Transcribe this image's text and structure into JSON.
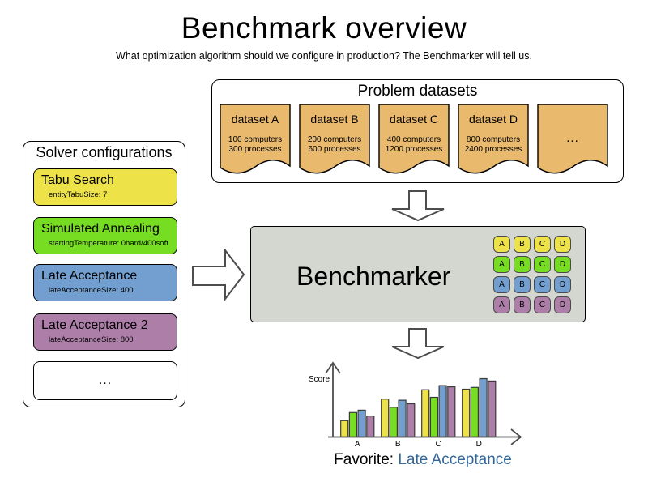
{
  "title": "Benchmark overview",
  "subtitle": "What optimization algorithm should we configure in production? The Benchmarker will tell us.",
  "colors": {
    "yellow": "#ede349",
    "green": "#77dd22",
    "blue": "#729fcf",
    "purple": "#ad7fa8",
    "tan": "#e9b96e",
    "benchmarker_bg": "#d3d7cf",
    "favorite_blue": "#336699"
  },
  "solver_configurations": {
    "title": "Solver configurations",
    "items": [
      {
        "name": "Tabu Search",
        "param": "entityTabuSize: 7",
        "color": "#ede349"
      },
      {
        "name": "Simulated Annealing",
        "param": "startingTemperature: 0hard/400soft",
        "color": "#77dd22"
      },
      {
        "name": "Late Acceptance",
        "param": "lateAcceptanceSize: 400",
        "color": "#729fcf"
      },
      {
        "name": "Late Acceptance 2",
        "param": "lateAcceptanceSize: 800",
        "color": "#ad7fa8"
      },
      {
        "name": "...",
        "param": "",
        "color": "#ffffff"
      }
    ]
  },
  "problem_datasets": {
    "title": "Problem datasets",
    "cards": [
      {
        "name": "dataset A",
        "line1": "100 computers",
        "line2": "300 processes"
      },
      {
        "name": "dataset B",
        "line1": "200 computers",
        "line2": "600 processes"
      },
      {
        "name": "dataset C",
        "line1": "400 computers",
        "line2": "1200 processes"
      },
      {
        "name": "dataset D",
        "line1": "800 computers",
        "line2": "2400 processes"
      },
      {
        "name": "...",
        "line1": "",
        "line2": ""
      }
    ]
  },
  "benchmarker": {
    "label": "Benchmarker",
    "chip_columns": [
      "A",
      "B",
      "C",
      "D"
    ],
    "chip_row_colors": [
      "#ede349",
      "#77dd22",
      "#729fcf",
      "#ad7fa8"
    ]
  },
  "chart_data": {
    "type": "bar",
    "title": "",
    "xlabel": "",
    "ylabel": "Score",
    "categories": [
      "A",
      "B",
      "C",
      "D"
    ],
    "series": [
      {
        "name": "Tabu Search",
        "color": "#ede349",
        "values": [
          28,
          65,
          81,
          82
        ]
      },
      {
        "name": "Simulated Annealing",
        "color": "#77dd22",
        "values": [
          42,
          51,
          68,
          85
        ]
      },
      {
        "name": "Late Acceptance",
        "color": "#729fcf",
        "values": [
          46,
          63,
          88,
          100
        ]
      },
      {
        "name": "Late Acceptance 2",
        "color": "#ad7fa8",
        "values": [
          36,
          57,
          86,
          96
        ]
      }
    ],
    "ylim": [
      0,
      100
    ],
    "grid": false,
    "legend": false
  },
  "favorite": {
    "label": "Favorite: ",
    "value": "Late Acceptance"
  }
}
